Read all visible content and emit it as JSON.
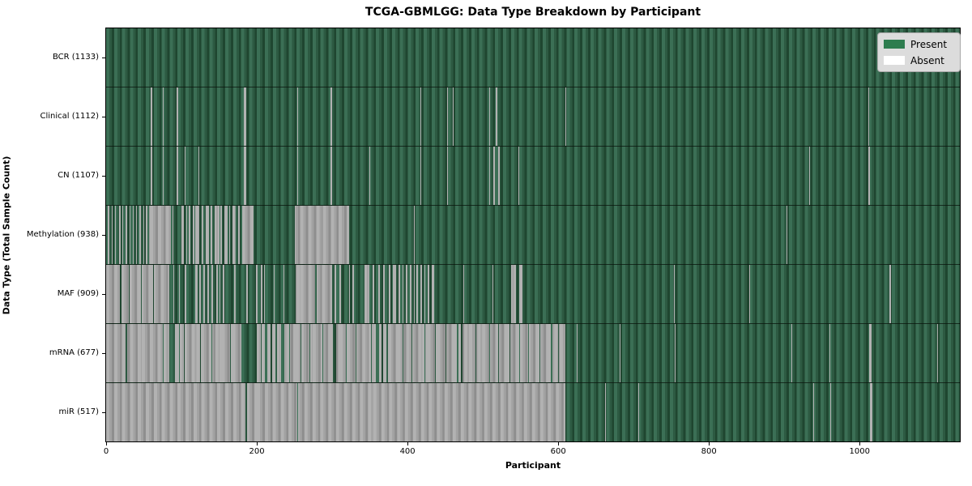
{
  "title": "TCGA-GBMLGG: Data Type Breakdown by Participant",
  "chart_data": {
    "type": "heatmap",
    "title": "TCGA-GBMLGG: Data Type Breakdown by Participant",
    "xlabel": "Participant",
    "ylabel": "Data Type (Total Sample Count)",
    "x_ticks": [
      0,
      200,
      400,
      600,
      800,
      1000
    ],
    "x_max": 1133,
    "grid": false,
    "legend": {
      "position": "upper right",
      "entries": [
        {
          "label": "Present",
          "color": "#2e7d4f"
        },
        {
          "label": "Absent",
          "color": "#ffffff"
        }
      ]
    },
    "colors": {
      "present_band_light": "#3b6f55",
      "present_band_mid": "#2d5a42",
      "present_band_dark": "#1f4630",
      "absent_band_light": "#b2b2b2",
      "absent_band_mid": "#a2a2a2",
      "absent_band_dark": "#8e8e8e",
      "legend_bg": "#dcdcdc",
      "legend_border": "#a8a8a8",
      "spine": "#000000"
    },
    "rows": [
      {
        "label": "BCR (1133)",
        "data_type": "BCR",
        "total_samples": 1133,
        "absent_ranges": []
      },
      {
        "label": "Clinical (1112)",
        "data_type": "Clinical",
        "total_samples": 1112,
        "absent_ranges": [
          [
            59,
            61
          ],
          [
            75,
            76
          ],
          [
            78,
            79
          ],
          [
            94,
            96
          ],
          [
            183,
            186
          ],
          [
            254,
            255
          ],
          [
            298,
            300
          ],
          [
            417,
            418
          ],
          [
            453,
            454
          ],
          [
            460,
            461
          ],
          [
            508,
            509
          ],
          [
            517,
            519
          ],
          [
            610,
            611
          ],
          [
            1012,
            1013
          ]
        ]
      },
      {
        "label": "CN (1107)",
        "data_type": "CN",
        "total_samples": 1107,
        "absent_ranges": [
          [
            59,
            61
          ],
          [
            75,
            76
          ],
          [
            78,
            79
          ],
          [
            94,
            96
          ],
          [
            104,
            105
          ],
          [
            123,
            124
          ],
          [
            183,
            186
          ],
          [
            254,
            255
          ],
          [
            298,
            300
          ],
          [
            349,
            350
          ],
          [
            417,
            418
          ],
          [
            453,
            454
          ],
          [
            508,
            509
          ],
          [
            514,
            516
          ],
          [
            520,
            522
          ],
          [
            547,
            548
          ],
          [
            552,
            553
          ],
          [
            933,
            934
          ],
          [
            1012,
            1014
          ]
        ]
      },
      {
        "label": "Methylation (938)",
        "data_type": "Methylation",
        "total_samples": 938,
        "absent_ranges": [
          [
            2,
            4
          ],
          [
            7,
            9
          ],
          [
            12,
            13
          ],
          [
            17,
            19
          ],
          [
            22,
            23
          ],
          [
            26,
            28
          ],
          [
            31,
            32
          ],
          [
            35,
            37
          ],
          [
            40,
            41
          ],
          [
            44,
            46
          ],
          [
            49,
            50
          ],
          [
            53,
            55
          ],
          [
            57,
            86
          ],
          [
            88,
            89
          ],
          [
            100,
            103
          ],
          [
            106,
            108
          ],
          [
            110,
            112
          ],
          [
            115,
            117
          ],
          [
            118,
            124
          ],
          [
            127,
            129
          ],
          [
            132,
            136
          ],
          [
            139,
            141
          ],
          [
            144,
            150
          ],
          [
            152,
            154
          ],
          [
            157,
            161
          ],
          [
            163,
            165
          ],
          [
            168,
            172
          ],
          [
            175,
            177
          ],
          [
            181,
            196
          ],
          [
            251,
            322
          ],
          [
            409,
            410
          ],
          [
            903,
            904
          ]
        ]
      },
      {
        "label": "MAF (909)",
        "data_type": "MAF",
        "total_samples": 909,
        "absent_ranges": [
          [
            0,
            18
          ],
          [
            20,
            30
          ],
          [
            31,
            46
          ],
          [
            47,
            62
          ],
          [
            63,
            84
          ],
          [
            89,
            90
          ],
          [
            97,
            98
          ],
          [
            104,
            106
          ],
          [
            118,
            121
          ],
          [
            124,
            126
          ],
          [
            129,
            131
          ],
          [
            134,
            136
          ],
          [
            140,
            142
          ],
          [
            146,
            148
          ],
          [
            150,
            152
          ],
          [
            155,
            157
          ],
          [
            170,
            172
          ],
          [
            186,
            188
          ],
          [
            199,
            201
          ],
          [
            205,
            207
          ],
          [
            210,
            211
          ],
          [
            223,
            224
          ],
          [
            235,
            236
          ],
          [
            252,
            277
          ],
          [
            279,
            300
          ],
          [
            303,
            305
          ],
          [
            310,
            312
          ],
          [
            322,
            324
          ],
          [
            327,
            329
          ],
          [
            343,
            349
          ],
          [
            354,
            356
          ],
          [
            361,
            363
          ],
          [
            368,
            370
          ],
          [
            375,
            377
          ],
          [
            381,
            385
          ],
          [
            388,
            390
          ],
          [
            393,
            395
          ],
          [
            398,
            400
          ],
          [
            403,
            405
          ],
          [
            408,
            410
          ],
          [
            412,
            414
          ],
          [
            417,
            419
          ],
          [
            422,
            424
          ],
          [
            427,
            429
          ],
          [
            432,
            435
          ],
          [
            474,
            475
          ],
          [
            513,
            514
          ],
          [
            538,
            544
          ],
          [
            548,
            553
          ],
          [
            754,
            755
          ],
          [
            853,
            855
          ],
          [
            1040,
            1042
          ]
        ]
      },
      {
        "label": "mRNA (677)",
        "data_type": "mRNA",
        "total_samples": 677,
        "absent_ranges": [
          [
            0,
            26
          ],
          [
            28,
            75
          ],
          [
            76,
            84
          ],
          [
            91,
            93
          ],
          [
            94,
            97
          ],
          [
            98,
            103
          ],
          [
            104,
            107
          ],
          [
            108,
            125
          ],
          [
            126,
            140
          ],
          [
            141,
            150
          ],
          [
            151,
            165
          ],
          [
            166,
            179
          ],
          [
            200,
            205
          ],
          [
            206,
            211
          ],
          [
            214,
            218
          ],
          [
            220,
            225
          ],
          [
            227,
            232
          ],
          [
            236,
            243
          ],
          [
            244,
            258
          ],
          [
            259,
            270
          ],
          [
            271,
            287
          ],
          [
            288,
            301
          ],
          [
            305,
            318
          ],
          [
            319,
            331
          ],
          [
            332,
            352
          ],
          [
            353,
            358
          ],
          [
            362,
            366
          ],
          [
            368,
            372
          ],
          [
            374,
            380
          ],
          [
            381,
            393
          ],
          [
            394,
            405
          ],
          [
            406,
            422
          ],
          [
            423,
            436
          ],
          [
            437,
            450
          ],
          [
            451,
            465
          ],
          [
            468,
            471
          ],
          [
            473,
            490
          ],
          [
            491,
            508
          ],
          [
            509,
            520
          ],
          [
            521,
            535
          ],
          [
            536,
            548
          ],
          [
            549,
            560
          ],
          [
            561,
            575
          ],
          [
            576,
            590
          ],
          [
            592,
            600
          ],
          [
            601,
            609
          ],
          [
            625,
            626
          ],
          [
            682,
            683
          ],
          [
            755,
            756
          ],
          [
            909,
            910
          ],
          [
            960,
            961
          ],
          [
            1013,
            1016
          ],
          [
            1103,
            1104
          ]
        ]
      },
      {
        "label": "miR (517)",
        "data_type": "miR",
        "total_samples": 517,
        "absent_ranges": [
          [
            0,
            185
          ],
          [
            187,
            254
          ],
          [
            255,
            609
          ],
          [
            662,
            663
          ],
          [
            706,
            707
          ],
          [
            938,
            939
          ],
          [
            961,
            962
          ],
          [
            996,
            997
          ],
          [
            1014,
            1017
          ]
        ]
      }
    ]
  }
}
